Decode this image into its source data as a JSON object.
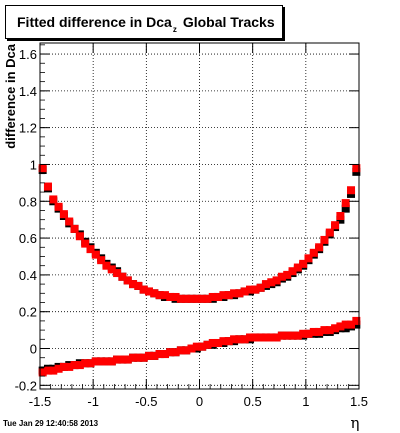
{
  "title": {
    "main": "Fitted difference in Dca",
    "subscript": "z",
    "suffix": "Global Tracks"
  },
  "timestamp": "Tue Jan 29 12:40:58 2013",
  "colors": {
    "series_black": "#000000",
    "series_red": "#ff0000",
    "frame": "#000000",
    "grid": "#000000"
  },
  "chart_data": {
    "type": "scatter",
    "xlabel": "η",
    "ylabel": "difference in Dca",
    "xlim": [
      -1.5,
      1.5
    ],
    "ylim": [
      -0.22,
      1.66
    ],
    "grid": true,
    "x_ticks": [
      -1.5,
      -1,
      -0.5,
      0,
      0.5,
      1,
      1.5
    ],
    "x_tick_labels": [
      "-1.5",
      "-1",
      "-0.5",
      "0",
      "0.5",
      "1",
      "1.5"
    ],
    "y_ticks": [
      -0.2,
      0,
      0.2,
      0.4,
      0.6,
      0.8,
      1,
      1.2,
      1.4,
      1.6
    ],
    "y_tick_labels": [
      "-0.2",
      "0",
      "0.2",
      "0.4",
      "0.6",
      "0.8",
      "1",
      "1.2",
      "1.4",
      "1.6"
    ],
    "series": [
      {
        "color": "#000000",
        "marker": "square",
        "x": [
          -1.475,
          -1.425,
          -1.375,
          -1.325,
          -1.275,
          -1.225,
          -1.175,
          -1.125,
          -1.075,
          -1.025,
          -0.975,
          -0.925,
          -0.875,
          -0.825,
          -0.775,
          -0.725,
          -0.675,
          -0.625,
          -0.575,
          -0.525,
          -0.475,
          -0.425,
          -0.375,
          -0.325,
          -0.275,
          -0.225,
          -0.175,
          -0.125,
          -0.075,
          -0.025,
          0.025,
          0.075,
          0.125,
          0.175,
          0.225,
          0.275,
          0.325,
          0.375,
          0.425,
          0.475,
          0.525,
          0.575,
          0.625,
          0.675,
          0.725,
          0.775,
          0.825,
          0.875,
          0.925,
          0.975,
          1.025,
          1.075,
          1.125,
          1.175,
          1.225,
          1.275,
          1.325,
          1.375,
          1.425,
          1.475
        ],
        "groups": [
          [
            0.97,
            0.87,
            0.8,
            0.76,
            0.72,
            0.68,
            0.65,
            0.62,
            0.58,
            0.55,
            0.52,
            0.49,
            0.46,
            0.44,
            0.42,
            0.39,
            0.37,
            0.35,
            0.34,
            0.32,
            0.31,
            0.3,
            0.29,
            0.28,
            0.28,
            0.27,
            0.27,
            0.27,
            0.27,
            0.27,
            0.27,
            0.27,
            0.27,
            0.28,
            0.28,
            0.29,
            0.29,
            0.3,
            0.31,
            0.31,
            0.32,
            0.33,
            0.34,
            0.35,
            0.36,
            0.38,
            0.39,
            0.41,
            0.43,
            0.45,
            0.48,
            0.51,
            0.54,
            0.58,
            0.62,
            0.66,
            0.7,
            0.76,
            0.84,
            0.96
          ],
          [
            -0.12,
            -0.11,
            -0.11,
            -0.1,
            -0.1,
            -0.09,
            -0.09,
            -0.08,
            -0.08,
            -0.08,
            -0.07,
            -0.07,
            -0.07,
            -0.07,
            -0.06,
            -0.06,
            -0.06,
            -0.05,
            -0.05,
            -0.05,
            -0.04,
            -0.04,
            -0.03,
            -0.03,
            -0.02,
            -0.02,
            -0.01,
            -0.01,
            0.0,
            0.0,
            0.01,
            0.02,
            0.02,
            0.03,
            0.03,
            0.04,
            0.04,
            0.05,
            0.05,
            0.05,
            0.06,
            0.06,
            0.06,
            0.06,
            0.06,
            0.07,
            0.07,
            0.07,
            0.07,
            0.07,
            0.08,
            0.08,
            0.08,
            0.09,
            0.09,
            0.1,
            0.11,
            0.11,
            0.12,
            0.13
          ]
        ]
      },
      {
        "color": "#ff0000",
        "marker": "square",
        "x": [
          -1.475,
          -1.425,
          -1.375,
          -1.325,
          -1.275,
          -1.225,
          -1.175,
          -1.125,
          -1.075,
          -1.025,
          -0.975,
          -0.925,
          -0.875,
          -0.825,
          -0.775,
          -0.725,
          -0.675,
          -0.625,
          -0.575,
          -0.525,
          -0.475,
          -0.425,
          -0.375,
          -0.325,
          -0.275,
          -0.225,
          -0.175,
          -0.125,
          -0.075,
          -0.025,
          0.025,
          0.075,
          0.125,
          0.175,
          0.225,
          0.275,
          0.325,
          0.375,
          0.425,
          0.475,
          0.525,
          0.575,
          0.625,
          0.675,
          0.725,
          0.775,
          0.825,
          0.875,
          0.925,
          0.975,
          1.025,
          1.075,
          1.125,
          1.175,
          1.225,
          1.275,
          1.325,
          1.375,
          1.425,
          1.475
        ],
        "groups": [
          [
            0.98,
            0.88,
            0.81,
            0.77,
            0.73,
            0.69,
            0.65,
            0.61,
            0.57,
            0.54,
            0.51,
            0.48,
            0.45,
            0.43,
            0.41,
            0.39,
            0.37,
            0.35,
            0.34,
            0.32,
            0.31,
            0.3,
            0.29,
            0.29,
            0.28,
            0.28,
            0.27,
            0.27,
            0.27,
            0.27,
            0.27,
            0.27,
            0.28,
            0.28,
            0.29,
            0.29,
            0.3,
            0.3,
            0.31,
            0.32,
            0.32,
            0.33,
            0.35,
            0.36,
            0.37,
            0.39,
            0.4,
            0.42,
            0.44,
            0.46,
            0.49,
            0.52,
            0.55,
            0.59,
            0.63,
            0.67,
            0.72,
            0.79,
            0.86,
            0.98
          ],
          [
            -0.13,
            -0.12,
            -0.12,
            -0.11,
            -0.1,
            -0.1,
            -0.09,
            -0.09,
            -0.08,
            -0.08,
            -0.07,
            -0.07,
            -0.07,
            -0.07,
            -0.06,
            -0.06,
            -0.06,
            -0.05,
            -0.05,
            -0.05,
            -0.04,
            -0.04,
            -0.03,
            -0.03,
            -0.02,
            -0.02,
            -0.01,
            -0.01,
            0.0,
            0.01,
            0.01,
            0.02,
            0.03,
            0.03,
            0.04,
            0.04,
            0.05,
            0.05,
            0.05,
            0.06,
            0.06,
            0.06,
            0.06,
            0.06,
            0.06,
            0.07,
            0.07,
            0.07,
            0.07,
            0.08,
            0.08,
            0.09,
            0.09,
            0.1,
            0.1,
            0.11,
            0.12,
            0.13,
            0.13,
            0.15
          ]
        ]
      }
    ]
  }
}
